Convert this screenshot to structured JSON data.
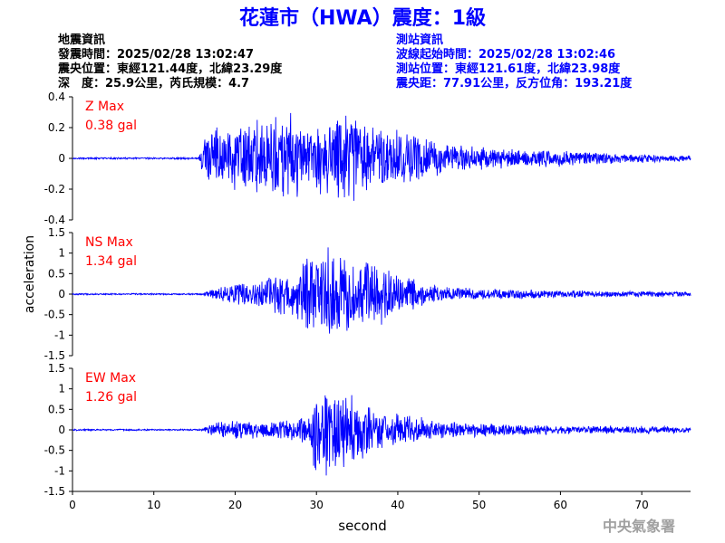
{
  "title": "花蓮市（HWA）震度：1級",
  "quake_info": {
    "heading": "地震資訊",
    "time": "發震時間：2025/02/28 13:02:47",
    "epicenter": "震央位置：東經121.44度，北緯23.29度",
    "depth_mag": "深　度：25.9公里，芮氏規模：4.7"
  },
  "station_info": {
    "heading": "測站資訊",
    "wave_start": "波線起始時間：2025/02/28 13:02:46",
    "location": "測站位置：東經121.61度，北緯23.98度",
    "distance": "震央距：77.91公里，反方位角：193.21度"
  },
  "watermark": "中央氣象署",
  "colors": {
    "title": "#0000ff",
    "station_info": "#0000ff",
    "trace": "#0000ff",
    "max_label": "#ff0000",
    "text": "#000000",
    "watermark": "#a0a0a0"
  },
  "chart_data": [
    {
      "type": "line",
      "component": "Z",
      "max_label": "Z Max",
      "max_value": "0.38 gal",
      "peak": 0.38,
      "ylim": [
        -0.4,
        0.4
      ],
      "yticks": [
        -0.4,
        -0.2,
        0,
        0.2,
        0.4
      ],
      "ytick_labels": [
        "-0.4",
        "-0.2",
        "0",
        "0.2",
        "0.4"
      ],
      "envelope": [
        [
          0,
          0.006
        ],
        [
          15.5,
          0.006
        ],
        [
          16,
          0.14
        ],
        [
          18,
          0.24
        ],
        [
          21,
          0.24
        ],
        [
          24,
          0.27
        ],
        [
          27,
          0.3
        ],
        [
          29,
          0.2
        ],
        [
          31,
          0.3
        ],
        [
          34,
          0.36
        ],
        [
          37,
          0.26
        ],
        [
          40,
          0.22
        ],
        [
          43,
          0.15
        ],
        [
          46,
          0.11
        ],
        [
          50,
          0.08
        ],
        [
          55,
          0.06
        ],
        [
          60,
          0.06
        ],
        [
          65,
          0.04
        ],
        [
          70,
          0.03
        ],
        [
          76,
          0.02
        ]
      ]
    },
    {
      "type": "line",
      "component": "NS",
      "max_label": "NS Max",
      "max_value": "1.34 gal",
      "peak": 1.34,
      "ylim": [
        -1.5,
        1.5
      ],
      "yticks": [
        -1.5,
        -1,
        -0.5,
        0,
        0.5,
        1,
        1.5
      ],
      "ytick_labels": [
        "-1.5",
        "-1",
        "-0.5",
        "0",
        "0.5",
        "1",
        "1.5"
      ],
      "envelope": [
        [
          0,
          0.02
        ],
        [
          16,
          0.02
        ],
        [
          17,
          0.15
        ],
        [
          20,
          0.3
        ],
        [
          24,
          0.45
        ],
        [
          27,
          0.6
        ],
        [
          29,
          1.0
        ],
        [
          31,
          1.34
        ],
        [
          33,
          1.0
        ],
        [
          35,
          0.9
        ],
        [
          38,
          0.8
        ],
        [
          41,
          0.5
        ],
        [
          43,
          0.3
        ],
        [
          46,
          0.2
        ],
        [
          50,
          0.15
        ],
        [
          60,
          0.1
        ],
        [
          70,
          0.08
        ],
        [
          76,
          0.06
        ]
      ]
    },
    {
      "type": "line",
      "component": "EW",
      "max_label": "EW Max",
      "max_value": "1.26 gal",
      "peak": 1.26,
      "ylim": [
        -1.5,
        1.5
      ],
      "yticks": [
        -1.5,
        -1,
        -0.5,
        0,
        0.5,
        1,
        1.5
      ],
      "ytick_labels": [
        "-1.5",
        "-1",
        "-0.5",
        "0",
        "0.5",
        "1",
        "1.5"
      ],
      "envelope": [
        [
          0,
          0.02
        ],
        [
          16,
          0.02
        ],
        [
          17,
          0.2
        ],
        [
          20,
          0.25
        ],
        [
          24,
          0.2
        ],
        [
          27,
          0.3
        ],
        [
          29,
          0.35
        ],
        [
          30,
          1.26
        ],
        [
          32,
          1.1
        ],
        [
          34,
          1.0
        ],
        [
          36,
          0.7
        ],
        [
          38,
          0.5
        ],
        [
          42,
          0.35
        ],
        [
          46,
          0.22
        ],
        [
          50,
          0.18
        ],
        [
          60,
          0.12
        ],
        [
          70,
          0.1
        ],
        [
          76,
          0.08
        ]
      ]
    }
  ],
  "x_axis": {
    "label": "second",
    "xlim": [
      0,
      76
    ],
    "ticks": [
      0,
      10,
      20,
      30,
      40,
      50,
      60,
      70
    ],
    "tick_labels": [
      "0",
      "10",
      "20",
      "30",
      "40",
      "50",
      "60",
      "70"
    ]
  },
  "y_axis_label": "acceleration"
}
